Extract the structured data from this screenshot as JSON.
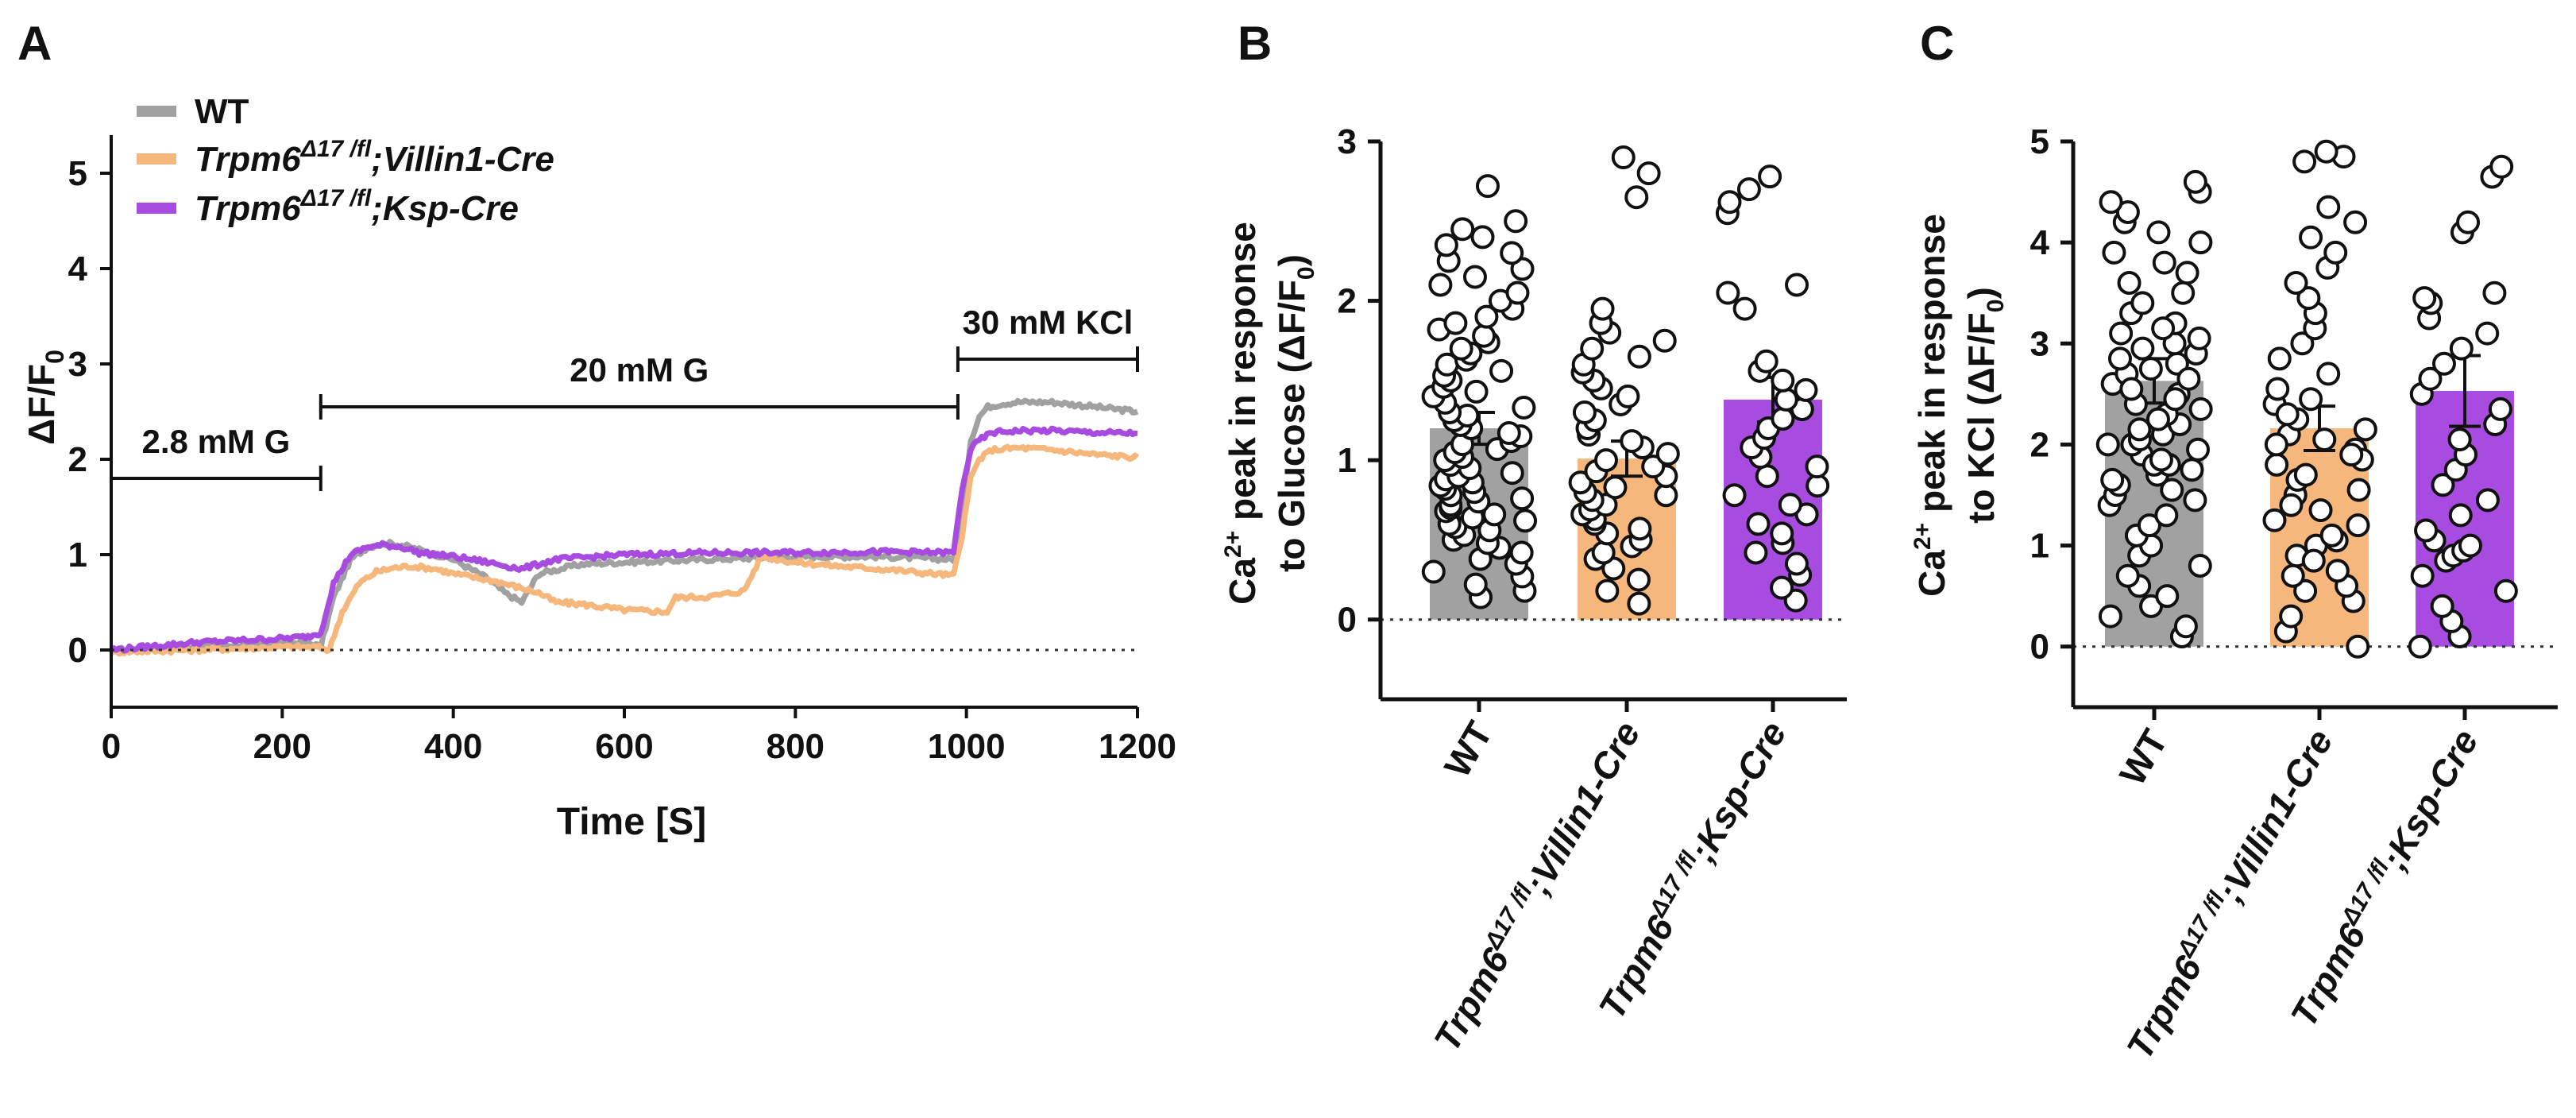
{
  "colors": {
    "wt": "#a1a1a1",
    "villin": "#f5b77c",
    "ksp": "#a84be0",
    "axis": "#111111",
    "marker_edge": "#111111",
    "marker_fill": "#ffffff"
  },
  "chart_data": [
    {
      "panel": "A",
      "type": "line",
      "xlabel": "Time [S]",
      "ylabel_main": "ΔF/F",
      "ylabel_sub": "0",
      "xlim": [
        0,
        1200
      ],
      "ylim": [
        -0.6,
        5.4
      ],
      "xticks": [
        "0",
        "200",
        "400",
        "600",
        "800",
        "1000",
        "1200"
      ],
      "xtick_values": [
        0,
        200,
        400,
        600,
        800,
        1000,
        1200
      ],
      "yticks": [
        "0",
        "1",
        "2",
        "3",
        "4",
        "5"
      ],
      "ytick_values": [
        0,
        1,
        2,
        3,
        4,
        5
      ],
      "legend": {
        "placement": "top-left",
        "entries": [
          {
            "key": "wt",
            "label": "WT",
            "sup": "",
            "suffix": ""
          },
          {
            "key": "villin",
            "label": "Trpm6",
            "sup": "Δ17 /fl",
            "suffix": ";Villin1-Cre"
          },
          {
            "key": "ksp",
            "label": "Trpm6",
            "sup": "Δ17 /fl",
            "suffix": ";Ksp-Cre"
          }
        ]
      },
      "annotations": [
        {
          "label": "2.8 mM G",
          "x_start": 0,
          "x_end": 245,
          "y": 1.8
        },
        {
          "label": "20 mM G",
          "x_start": 245,
          "x_end": 990,
          "y": 2.55
        },
        {
          "label": "30 mM KCl",
          "x_start": 990,
          "x_end": 1200,
          "y": 3.05
        }
      ],
      "baseline_y": 0,
      "series": [
        {
          "key": "wt",
          "name": "WT",
          "x": [
            0,
            100,
            200,
            230,
            245,
            260,
            280,
            300,
            320,
            340,
            360,
            380,
            400,
            420,
            440,
            460,
            480,
            500,
            550,
            600,
            700,
            800,
            900,
            985,
            995,
            1005,
            1015,
            1025,
            1040,
            1060,
            1080,
            1100,
            1150,
            1200
          ],
          "y": [
            0,
            0.04,
            0.07,
            0.08,
            0.03,
            0.55,
            0.95,
            1.08,
            1.12,
            1.1,
            1.05,
            1.0,
            0.95,
            0.85,
            0.75,
            0.6,
            0.5,
            0.8,
            0.9,
            0.92,
            0.95,
            0.98,
            0.98,
            0.95,
            1.5,
            2.2,
            2.45,
            2.55,
            2.58,
            2.6,
            2.6,
            2.6,
            2.55,
            2.5
          ]
        },
        {
          "key": "villin",
          "name": "Trpm6Δ17/fl;Villin1-Cre",
          "x": [
            0,
            100,
            200,
            240,
            255,
            270,
            290,
            310,
            330,
            350,
            380,
            400,
            450,
            500,
            520,
            550,
            600,
            650,
            660,
            700,
            740,
            760,
            800,
            850,
            900,
            985,
            995,
            1005,
            1015,
            1030,
            1060,
            1100,
            1150,
            1200
          ],
          "y": [
            -0.02,
            0.0,
            0.03,
            0.03,
            0.0,
            0.4,
            0.7,
            0.82,
            0.86,
            0.88,
            0.85,
            0.8,
            0.72,
            0.6,
            0.5,
            0.48,
            0.42,
            0.4,
            0.55,
            0.56,
            0.62,
            0.98,
            0.92,
            0.88,
            0.85,
            0.78,
            1.2,
            1.8,
            2.0,
            2.1,
            2.12,
            2.1,
            2.05,
            2.02
          ]
        },
        {
          "key": "ksp",
          "name": "Trpm6Δ17/fl;Ksp-Cre",
          "x": [
            0,
            100,
            200,
            230,
            245,
            260,
            280,
            300,
            320,
            340,
            360,
            400,
            440,
            480,
            520,
            600,
            700,
            800,
            900,
            985,
            995,
            1005,
            1015,
            1030,
            1060,
            1100,
            1150,
            1200
          ],
          "y": [
            0.0,
            0.08,
            0.12,
            0.14,
            0.18,
            0.7,
            1.0,
            1.08,
            1.1,
            1.08,
            1.02,
            0.98,
            0.92,
            0.85,
            0.95,
            1.0,
            1.02,
            1.02,
            1.03,
            1.02,
            1.7,
            2.1,
            2.2,
            2.28,
            2.3,
            2.3,
            2.28,
            2.27
          ]
        }
      ]
    },
    {
      "panel": "B",
      "type": "bar",
      "ylabel_main": "Ca",
      "ylabel_sup": "2+",
      "ylabel_rest": " peak in response",
      "ylabel_line2": "to Glucose (ΔF/F",
      "ylabel_line2_sub": "0",
      "ylabel_line2_end": ")",
      "ylim": [
        -0.5,
        3.0
      ],
      "yticks": [
        "0",
        "1",
        "2",
        "3"
      ],
      "ytick_values": [
        0,
        1,
        2,
        3
      ],
      "categories": [
        {
          "key": "wt",
          "label": "WT",
          "sup": "",
          "suffix": ""
        },
        {
          "key": "villin",
          "label": "Trpm6",
          "sup": "Δ17 /fl",
          "suffix": ";Villin1-Cre"
        },
        {
          "key": "ksp",
          "label": "Trpm6",
          "sup": "Δ17 /fl",
          "suffix": ";Ksp-Cre"
        }
      ],
      "values": [
        1.2,
        1.01,
        1.38
      ],
      "errors": [
        0.1,
        0.11,
        0.14
      ],
      "points": [
        [
          0.14,
          0.18,
          0.22,
          0.27,
          0.3,
          0.35,
          0.38,
          0.42,
          0.45,
          0.48,
          0.5,
          0.53,
          0.56,
          0.58,
          0.6,
          0.62,
          0.64,
          0.66,
          0.68,
          0.7,
          0.72,
          0.74,
          0.76,
          0.78,
          0.8,
          0.82,
          0.84,
          0.86,
          0.88,
          0.9,
          0.92,
          0.95,
          0.97,
          1.0,
          1.02,
          1.05,
          1.07,
          1.1,
          1.12,
          1.15,
          1.17,
          1.2,
          1.22,
          1.25,
          1.28,
          1.3,
          1.33,
          1.36,
          1.4,
          1.43,
          1.46,
          1.5,
          1.53,
          1.56,
          1.6,
          1.63,
          1.67,
          1.7,
          1.74,
          1.78,
          1.82,
          1.86,
          1.9,
          1.95,
          2.0,
          2.05,
          2.1,
          2.15,
          2.2,
          2.25,
          2.3,
          2.35,
          2.4,
          2.45,
          2.5,
          2.72
        ],
        [
          0.1,
          0.18,
          0.25,
          0.32,
          0.38,
          0.42,
          0.46,
          0.5,
          0.54,
          0.57,
          0.6,
          0.63,
          0.66,
          0.69,
          0.72,
          0.75,
          0.78,
          0.8,
          0.83,
          0.86,
          0.9,
          0.93,
          0.96,
          1.0,
          1.04,
          1.08,
          1.12,
          1.16,
          1.2,
          1.25,
          1.3,
          1.35,
          1.4,
          1.45,
          1.5,
          1.55,
          1.6,
          1.65,
          1.7,
          1.75,
          1.8,
          1.86,
          1.95,
          2.65,
          2.8,
          2.9
        ],
        [
          0.12,
          0.2,
          0.28,
          0.35,
          0.42,
          0.48,
          0.54,
          0.6,
          0.66,
          0.72,
          0.78,
          0.84,
          0.9,
          0.96,
          1.02,
          1.08,
          1.14,
          1.2,
          1.26,
          1.32,
          1.38,
          1.44,
          1.5,
          1.56,
          1.62,
          1.95,
          2.05,
          2.1,
          2.55,
          2.62,
          2.7,
          2.78
        ]
      ]
    },
    {
      "panel": "C",
      "type": "bar",
      "ylabel_main": "Ca",
      "ylabel_sup": "2+",
      "ylabel_rest": " peak in response",
      "ylabel_line2": "to KCl (ΔF/F",
      "ylabel_line2_sub": "0",
      "ylabel_line2_end": ")",
      "ylim": [
        -0.6,
        5.0
      ],
      "yticks": [
        "0",
        "1",
        "2",
        "3",
        "4",
        "5"
      ],
      "ytick_values": [
        0,
        1,
        2,
        3,
        4,
        5
      ],
      "categories": [
        {
          "key": "wt",
          "label": "WT",
          "sup": "",
          "suffix": ""
        },
        {
          "key": "villin",
          "label": "Trpm6",
          "sup": "Δ17 /fl",
          "suffix": ";Villin1-Cre"
        },
        {
          "key": "ksp",
          "label": "Trpm6",
          "sup": "Δ17 /fl",
          "suffix": ";Ksp-Cre"
        }
      ],
      "values": [
        2.63,
        2.16,
        2.53
      ],
      "errors": [
        0.22,
        0.22,
        0.35
      ],
      "points": [
        [
          0.1,
          0.2,
          0.3,
          0.4,
          0.5,
          0.6,
          0.7,
          0.8,
          0.9,
          1.0,
          1.1,
          1.2,
          1.3,
          1.4,
          1.5,
          1.6,
          1.7,
          1.8,
          1.9,
          2.0,
          2.1,
          2.2,
          2.3,
          2.4,
          2.5,
          2.6,
          2.7,
          2.8,
          2.9,
          3.0,
          3.1,
          3.2,
          3.3,
          3.4,
          3.5,
          3.6,
          3.7,
          3.8,
          3.9,
          4.0,
          4.1,
          4.2,
          4.3,
          4.4,
          4.5,
          4.6,
          1.8,
          1.75,
          1.85,
          2.05,
          2.15,
          2.25,
          2.35,
          2.45,
          2.55,
          2.65,
          2.75,
          2.85,
          2.95,
          3.05,
          3.15,
          1.45,
          1.55,
          1.65,
          1.95,
          2.0
        ],
        [
          0.0,
          0.15,
          0.3,
          0.45,
          0.6,
          0.75,
          0.9,
          1.05,
          1.2,
          1.35,
          1.5,
          1.65,
          1.8,
          1.95,
          2.1,
          2.25,
          2.4,
          2.55,
          2.7,
          2.85,
          3.0,
          3.15,
          3.3,
          3.45,
          3.6,
          3.75,
          3.9,
          4.05,
          4.2,
          4.35,
          4.8,
          4.85,
          4.9,
          1.0,
          1.1,
          1.25,
          1.4,
          1.55,
          1.7,
          1.85,
          2.0,
          2.15,
          2.3,
          2.45,
          0.55,
          0.7,
          0.85,
          1.9,
          2.05
        ],
        [
          0.0,
          0.1,
          0.25,
          0.4,
          0.55,
          0.7,
          0.85,
          0.9,
          0.95,
          1.0,
          1.05,
          1.15,
          1.3,
          1.45,
          1.6,
          1.75,
          1.9,
          2.05,
          2.2,
          2.35,
          2.5,
          2.65,
          2.8,
          2.95,
          3.1,
          3.25,
          3.4,
          3.45,
          3.5,
          4.1,
          4.2,
          4.65,
          4.75
        ]
      ]
    }
  ],
  "panel_letters": [
    "A",
    "B",
    "C"
  ]
}
